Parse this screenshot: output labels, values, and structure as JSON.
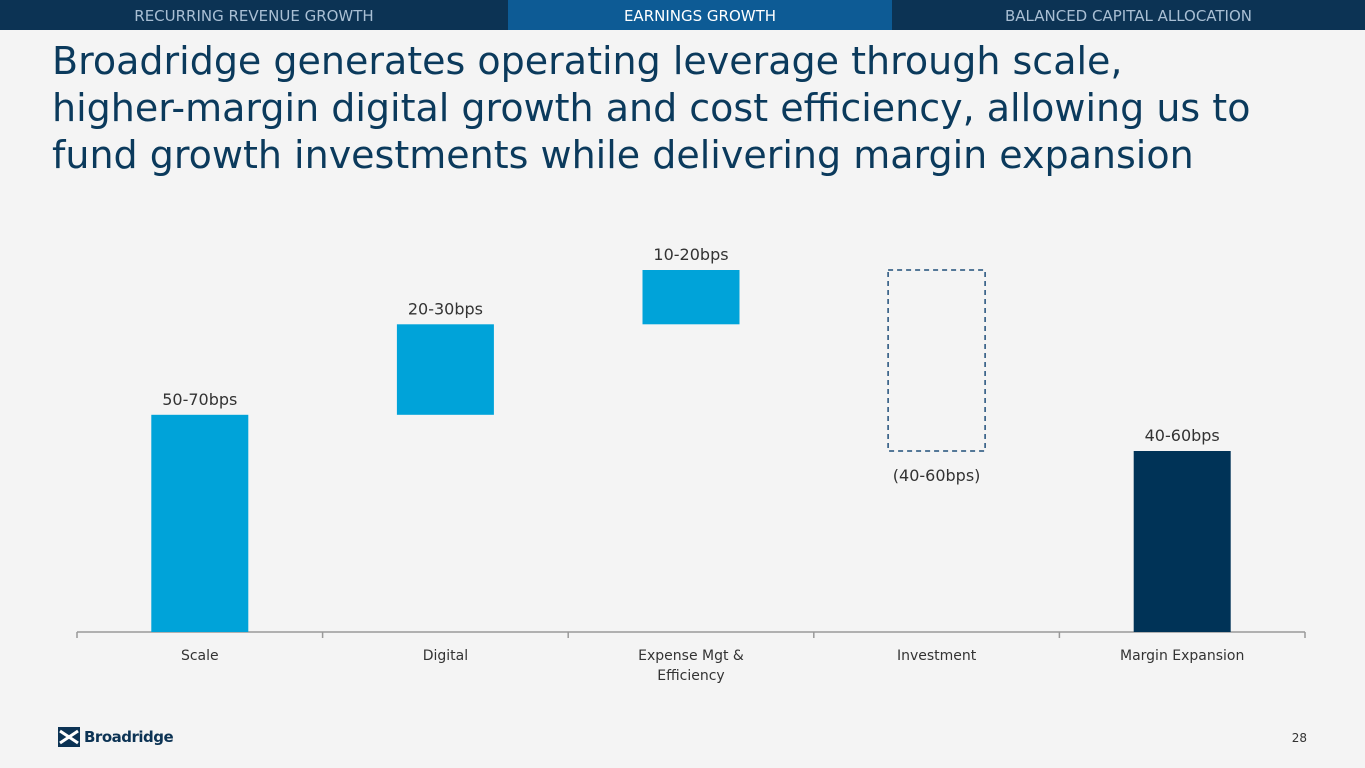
{
  "nav": {
    "tabs": [
      "RECURRING REVENUE GROWTH",
      "EARNINGS GROWTH",
      "BALANCED CAPITAL ALLOCATION"
    ],
    "active": 1
  },
  "chart_data": {
    "type": "waterfall",
    "title": "Broadridge generates operating leverage through scale, higher-margin digital growth and cost efficiency, allowing us to fund growth investments while delivering margin expansion",
    "categories": [
      "Scale",
      "Digital",
      "Expense Mgt & Efficiency",
      "Investment",
      "Margin Expansion"
    ],
    "values": [
      60,
      25,
      15,
      -50,
      50
    ],
    "value_labels": [
      "50-70bps",
      "20-30bps",
      "10-20bps",
      "(40-60bps)",
      "40-60bps"
    ],
    "measure": [
      "relative",
      "relative",
      "relative",
      "relative",
      "total"
    ],
    "colors": [
      "#00a3d9",
      "#00a3d9",
      "#00a3d9",
      "#1f4e79",
      "#003357"
    ],
    "negative_style": "dashed"
  },
  "footer": {
    "logo": "Broadridge",
    "page": "28"
  }
}
